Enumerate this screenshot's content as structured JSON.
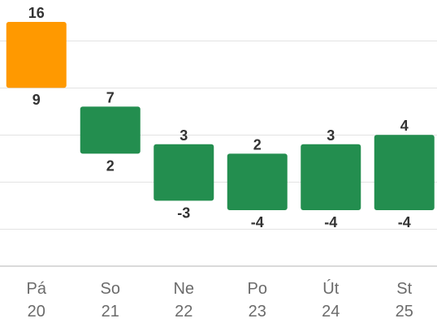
{
  "chart_data": {
    "type": "bar",
    "subtype": "floating-range",
    "grid": true,
    "ylim": [
      -8,
      16
    ],
    "y_gridlines": [
      -6,
      -1,
      4,
      9,
      14
    ],
    "categories": [
      {
        "day": "Pá",
        "date": "20"
      },
      {
        "day": "So",
        "date": "21"
      },
      {
        "day": "Ne",
        "date": "22"
      },
      {
        "day": "Po",
        "date": "23"
      },
      {
        "day": "Út",
        "date": "24"
      },
      {
        "day": "St",
        "date": "25"
      }
    ],
    "series": [
      {
        "high": [
          16,
          7,
          3,
          2,
          3,
          4
        ],
        "low": [
          9,
          2,
          -3,
          -4,
          -4,
          -4
        ],
        "high_labels": [
          "16",
          "7",
          "3",
          "2",
          "3",
          "4"
        ],
        "low_labels": [
          "9",
          "2",
          "-3",
          "-4",
          "-4",
          "-4"
        ],
        "colors": [
          "#ff9900",
          "#238e4f",
          "#238e4f",
          "#238e4f",
          "#238e4f",
          "#238e4f"
        ]
      }
    ]
  }
}
